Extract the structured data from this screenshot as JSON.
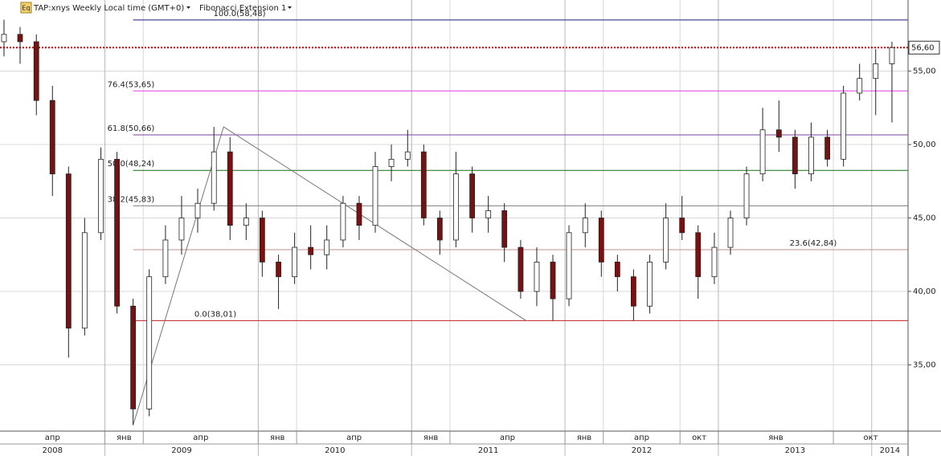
{
  "chart_data": {
    "type": "candlestick",
    "symbol": "TAP:xnys Weekly Local time (GMT+0)",
    "study": "Fibonacci Extension 1",
    "icon": "Eq",
    "xlim": [
      2008.316,
      2014.237
    ],
    "ylim": [
      30.49,
      59.84
    ],
    "yticks": [
      {
        "value": 35,
        "label": "35,00"
      },
      {
        "value": 40,
        "label": "40,00"
      },
      {
        "value": 45,
        "label": "45,00"
      },
      {
        "value": 50,
        "label": "50,00"
      },
      {
        "value": 55,
        "label": "55,00"
      }
    ],
    "xticks": [
      {
        "value": 2008.25,
        "label": "апр"
      },
      {
        "value": 2009.0,
        "label": "янв"
      },
      {
        "value": 2009.25,
        "label": "апр"
      },
      {
        "value": 2010.0,
        "label": "янв"
      },
      {
        "value": 2010.25,
        "label": "апр"
      },
      {
        "value": 2011.0,
        "label": "янв"
      },
      {
        "value": 2011.25,
        "label": "апр"
      },
      {
        "value": 2012.0,
        "label": "янв"
      },
      {
        "value": 2012.25,
        "label": "апр"
      },
      {
        "value": 2012.75,
        "label": "окт"
      },
      {
        "value": 2013.0,
        "label": "янв"
      },
      {
        "value": 2013.75,
        "label": "окт"
      }
    ],
    "year_ticks": [
      2008,
      2009,
      2010,
      2011,
      2012,
      2013,
      2014
    ],
    "grid": true,
    "up_color": "#ffffff",
    "down_color": "#7a1010",
    "x": [
      2008.342,
      2008.447,
      2008.553,
      2008.658,
      2008.763,
      2008.868,
      2008.974,
      2009.079,
      2009.184,
      2009.289,
      2009.395,
      2009.5,
      2009.605,
      2009.711,
      2009.816,
      2009.921,
      2010.026,
      2010.132,
      2010.237,
      2010.342,
      2010.447,
      2010.553,
      2010.658,
      2010.763,
      2010.868,
      2010.974,
      2011.079,
      2011.184,
      2011.289,
      2011.395,
      2011.5,
      2011.605,
      2011.711,
      2011.816,
      2011.921,
      2012.026,
      2012.132,
      2012.237,
      2012.342,
      2012.447,
      2012.553,
      2012.658,
      2012.763,
      2012.868,
      2012.974,
      2013.079,
      2013.184,
      2013.289,
      2013.395,
      2013.5,
      2013.605,
      2013.711,
      2013.816,
      2013.921,
      2014.026,
      2014.132
    ],
    "open": [
      57,
      57.5,
      57,
      53,
      48,
      37.5,
      44,
      49,
      39,
      32,
      41,
      43.5,
      45,
      46,
      49.5,
      44.5,
      45,
      42,
      41,
      43,
      42.5,
      43.5,
      46,
      44.5,
      48.5,
      49,
      49.5,
      45,
      43.5,
      48,
      45,
      45.5,
      43,
      40,
      42,
      39.5,
      44,
      45,
      42,
      41,
      39,
      42,
      45,
      44,
      41,
      43,
      45,
      48,
      51,
      50.5,
      48,
      50.5,
      49,
      53.5,
      54.5,
      55.5
    ],
    "high": [
      58.5,
      58,
      57.5,
      54,
      48.5,
      45,
      49.8,
      49.5,
      39.5,
      41.5,
      44.5,
      46.5,
      47,
      51.2,
      50.5,
      46,
      45.5,
      42.5,
      44,
      44.5,
      44.5,
      46.5,
      46.5,
      49.5,
      50,
      51,
      50,
      45.5,
      49.5,
      48.5,
      46.5,
      46,
      43.5,
      43,
      42.5,
      44.5,
      46,
      45.5,
      42.5,
      41.5,
      42.5,
      46,
      46.5,
      44.5,
      44,
      45.5,
      48.5,
      52.5,
      53,
      51,
      51.5,
      51,
      54,
      55.5,
      56.5,
      57
    ],
    "low": [
      56,
      55.5,
      52,
      46.5,
      35.5,
      37,
      43.5,
      38.5,
      30.9,
      31.5,
      40.5,
      42.5,
      44,
      45.5,
      43.5,
      43.5,
      41,
      38.8,
      40.5,
      41.5,
      41.5,
      43,
      43.5,
      44,
      47.5,
      48.5,
      44.5,
      42.5,
      43,
      44,
      44,
      42,
      39.5,
      39,
      38,
      39,
      43,
      41,
      40,
      38,
      38.5,
      41.5,
      43.5,
      39.5,
      40.5,
      42.5,
      44.5,
      47.5,
      49.5,
      47,
      47.5,
      48.5,
      48.5,
      53,
      52,
      51.5
    ],
    "close": [
      57.5,
      57,
      53,
      48,
      37.5,
      44,
      49,
      39,
      32,
      41,
      43.5,
      45,
      46,
      49.5,
      44.5,
      45,
      42,
      41,
      43,
      42.5,
      43.5,
      46,
      44.5,
      48.5,
      49,
      49.5,
      45,
      43.5,
      48,
      45,
      45.5,
      43,
      40,
      42,
      39.5,
      44,
      45,
      42,
      41,
      39,
      42,
      45,
      44,
      41,
      43,
      45,
      48,
      51,
      50.5,
      48,
      50.5,
      49,
      53.5,
      54.5,
      55.5,
      56.6
    ],
    "last_price": {
      "value": 56.6,
      "label": "56,60"
    },
    "last_price_color": "#cc0000",
    "fib_points": {
      "x": [
        2009.184,
        2009.774,
        2011.747
      ],
      "y": [
        30.9,
        51.2,
        38.01
      ]
    },
    "fib_start": 2009.184,
    "levels": [
      {
        "value": 58.48,
        "label": "100.0(58,48)",
        "color": "#1a1a80"
      },
      {
        "value": 53.65,
        "label": "76.4(53,65)",
        "color": "#e040e0"
      },
      {
        "value": 50.66,
        "label": "61.8(50,66)",
        "color": "#8040a0"
      },
      {
        "value": 48.24,
        "label": "50.0(48,24)",
        "color": "#107010"
      },
      {
        "value": 45.83,
        "label": "38.2(45,83)",
        "color": "#808080"
      },
      {
        "value": 42.84,
        "label": "23.6(42,84)",
        "color": "#c09090"
      },
      {
        "value": 38.01,
        "label": "0.0(38,01)",
        "color": "#c02020"
      }
    ]
  }
}
